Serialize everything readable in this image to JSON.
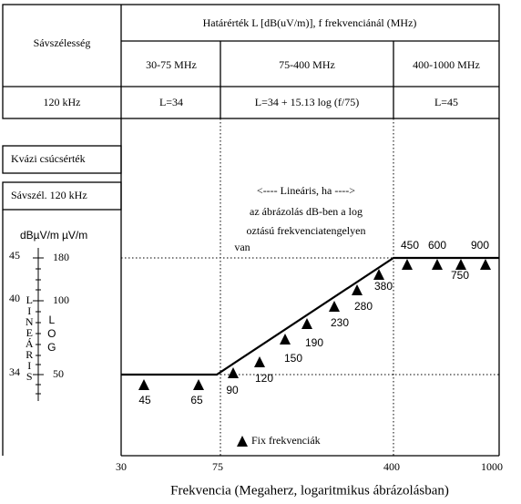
{
  "table": {
    "header_left": "Sávszélesség",
    "header_main": "Határérték L [dB(uV/m)], f frekvenciánál (MHz)",
    "ranges": [
      "30-75 MHz",
      "75-400 MHz",
      "400-1000 MHz"
    ],
    "row": [
      "120 kHz",
      "L=34",
      "L=34 + 15.13 log (f/75)",
      "L=45"
    ]
  },
  "left_labels": [
    "Kvázi csúcsérték",
    "Sávszél. 120 kHz"
  ],
  "scale": {
    "units": [
      "dBµV/m",
      "µV/m"
    ],
    "rows": [
      {
        "db": "45",
        "uv": "180"
      },
      {
        "db": "40",
        "uv": "100"
      },
      {
        "db": "34",
        "uv": "50"
      }
    ],
    "linear": "LINEÁRIS",
    "log": "LOG"
  },
  "annotation": [
    "<---- Lineáris, ha ---->",
    "az ábrázolás dB-ben a log",
    "oztású frekvenciatengelyen",
    "van"
  ],
  "x_ticks": [
    "30",
    "75",
    "400",
    "1000"
  ],
  "x_label": "Frekvencia (Megaherz, logaritmikus ábrázolásban)",
  "markers": [
    "45",
    "65",
    "90",
    "120",
    "150",
    "190",
    "230",
    "280",
    "380",
    "450",
    "600",
    "750",
    "900"
  ],
  "legend": "Fix frekvenciák"
}
